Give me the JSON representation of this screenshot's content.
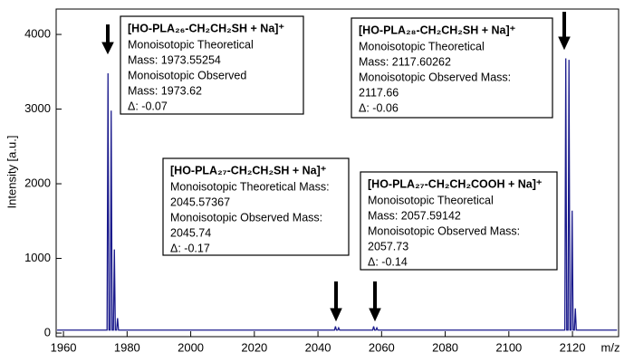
{
  "chart_data": {
    "type": "line",
    "xlabel": "m/z",
    "ylabel": "Intensity [a.u.]",
    "x": [
      1958,
      1973.7,
      1974.0,
      1974.3,
      1974.7,
      1975.0,
      1975.3,
      1975.7,
      1976.0,
      1976.3,
      1976.7,
      1977.0,
      1977.3,
      2045.2,
      2045.5,
      2045.8,
      2046.2,
      2046.5,
      2046.8,
      2057.2,
      2057.5,
      2057.8,
      2058.2,
      2058.5,
      2058.8,
      2117.6,
      2117.9,
      2118.2,
      2118.6,
      2118.9,
      2119.2,
      2119.6,
      2119.9,
      2120.2,
      2120.6,
      2120.9,
      2121.2,
      2134
    ],
    "series": [
      {
        "color": "#1a1a8c",
        "values": [
          40,
          40,
          3480,
          40,
          40,
          2980,
          40,
          40,
          1120,
          40,
          40,
          200,
          40,
          40,
          90,
          40,
          40,
          70,
          40,
          40,
          90,
          40,
          40,
          70,
          40,
          40,
          3680,
          40,
          40,
          3660,
          40,
          40,
          1640,
          40,
          40,
          330,
          40,
          40
        ]
      }
    ],
    "xlim": [
      1957.7,
      2134.5
    ],
    "ylim": [
      -48,
      4340
    ],
    "xticks": [
      1960,
      1980,
      2000,
      2020,
      2040,
      2060,
      2080,
      2100,
      2120
    ],
    "yticks": [
      0,
      1000,
      2000,
      3000,
      4000
    ],
    "annotations": [
      {
        "title": "[HO-PLA₂₆-CH₂CH₂SH + Na]⁺",
        "lines": [
          "Monoisotopic Theoretical",
          "Mass: 1973.55254",
          "Monoisotopic Observed",
          "Mass: 1973.62",
          "Δ: -0.07"
        ]
      },
      {
        "title": "[HO-PLA₂₈-CH₂CH₂SH + Na]⁺",
        "lines": [
          "Monoisotopic Theoretical",
          "Mass: 2117.60262",
          "Monoisotopic Observed Mass:",
          "2117.66",
          "Δ: -0.06"
        ]
      },
      {
        "title": "[HO-PLA₂₇-CH₂CH₂SH + Na]⁺",
        "lines": [
          "Monoisotopic Theoretical Mass:",
          "2045.57367",
          "Monoisotopic Observed Mass:",
          "2045.74",
          "Δ: -0.17"
        ]
      },
      {
        "title": "[HO-PLA₂₇-CH₂CH₂COOH + Na]⁺",
        "lines": [
          "Monoisotopic Theoretical",
          "Mass: 2057.59142",
          "Monoisotopic Observed Mass:",
          "2057.73",
          "Δ: -0.14"
        ]
      }
    ]
  }
}
